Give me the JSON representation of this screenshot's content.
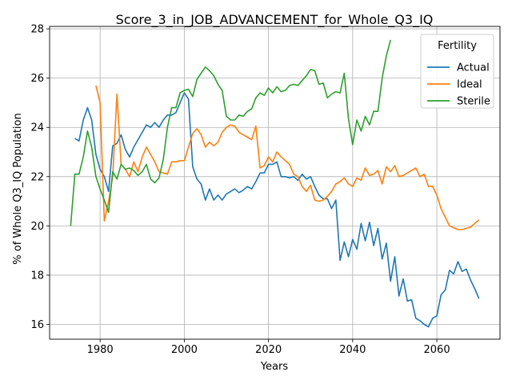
{
  "chart_data": {
    "type": "line",
    "title": "Score_3_in_JOB_ADVANCEMENT_for_Whole_Q3_IQ",
    "xlabel": "Years",
    "ylabel": "% of Whole Q3_IQ Population",
    "xlim": [
      1968,
      2075
    ],
    "ylim": [
      15.4,
      28.1
    ],
    "xticks": [
      1980,
      2000,
      2020,
      2040,
      2060
    ],
    "yticks": [
      16,
      18,
      20,
      22,
      24,
      26,
      28
    ],
    "grid": true,
    "legend": {
      "title": "Fertility",
      "position": "upper right"
    },
    "series": [
      {
        "name": "Actual",
        "color": "#1f77b4",
        "points": [
          [
            1974,
            23.55
          ],
          [
            1975,
            23.45
          ],
          [
            1976,
            24.3
          ],
          [
            1977,
            24.8
          ],
          [
            1978,
            24.3
          ],
          [
            1979,
            22.9
          ],
          [
            1980,
            22.3
          ],
          [
            1981,
            22.0
          ],
          [
            1982,
            21.4
          ],
          [
            1983,
            23.25
          ],
          [
            1984,
            23.35
          ],
          [
            1985,
            23.7
          ],
          [
            1986,
            23.1
          ],
          [
            1987,
            22.8
          ],
          [
            1988,
            23.2
          ],
          [
            1989,
            23.5
          ],
          [
            1990,
            23.8
          ],
          [
            1991,
            24.1
          ],
          [
            1992,
            24.0
          ],
          [
            1993,
            24.2
          ],
          [
            1994,
            24.0
          ],
          [
            1995,
            24.3
          ],
          [
            1996,
            24.5
          ],
          [
            1997,
            24.5
          ],
          [
            1998,
            24.6
          ],
          [
            1999,
            25.0
          ],
          [
            2000,
            25.4
          ],
          [
            2001,
            25.15
          ],
          [
            2002,
            22.4
          ],
          [
            2003,
            21.9
          ],
          [
            2004,
            21.7
          ],
          [
            2005,
            21.05
          ],
          [
            2006,
            21.5
          ],
          [
            2007,
            21.05
          ],
          [
            2008,
            21.25
          ],
          [
            2009,
            21.05
          ],
          [
            2010,
            21.3
          ],
          [
            2011,
            21.4
          ],
          [
            2012,
            21.5
          ],
          [
            2013,
            21.35
          ],
          [
            2014,
            21.45
          ],
          [
            2015,
            21.6
          ],
          [
            2016,
            21.5
          ],
          [
            2017,
            21.8
          ],
          [
            2018,
            22.15
          ],
          [
            2019,
            22.15
          ],
          [
            2020,
            22.5
          ],
          [
            2021,
            22.5
          ],
          [
            2022,
            22.6
          ],
          [
            2023,
            22.0
          ],
          [
            2024,
            22.0
          ],
          [
            2025,
            21.95
          ],
          [
            2026,
            22.0
          ],
          [
            2027,
            21.85
          ],
          [
            2028,
            22.1
          ],
          [
            2029,
            21.9
          ],
          [
            2030,
            22.0
          ],
          [
            2031,
            21.6
          ],
          [
            2032,
            21.25
          ],
          [
            2033,
            21.1
          ],
          [
            2034,
            21.1
          ],
          [
            2035,
            20.7
          ],
          [
            2036,
            21.05
          ],
          [
            2037,
            18.6
          ],
          [
            2038,
            19.35
          ],
          [
            2039,
            18.75
          ],
          [
            2040,
            19.45
          ],
          [
            2041,
            19.05
          ],
          [
            2042,
            20.1
          ],
          [
            2043,
            19.4
          ],
          [
            2044,
            20.15
          ],
          [
            2045,
            19.2
          ],
          [
            2046,
            19.9
          ],
          [
            2047,
            18.65
          ],
          [
            2048,
            19.3
          ],
          [
            2049,
            17.75
          ],
          [
            2050,
            18.75
          ],
          [
            2051,
            17.15
          ],
          [
            2052,
            17.85
          ],
          [
            2053,
            16.95
          ],
          [
            2054,
            17.0
          ],
          [
            2055,
            16.25
          ],
          [
            2056,
            16.15
          ],
          [
            2057,
            16.0
          ],
          [
            2058,
            15.9
          ],
          [
            2059,
            16.25
          ],
          [
            2060,
            16.35
          ],
          [
            2061,
            17.2
          ],
          [
            2062,
            17.4
          ],
          [
            2063,
            18.2
          ],
          [
            2064,
            18.05
          ],
          [
            2065,
            18.55
          ],
          [
            2066,
            18.15
          ],
          [
            2067,
            18.25
          ],
          [
            2068,
            17.8
          ],
          [
            2069,
            17.45
          ],
          [
            2070,
            17.05
          ]
        ]
      },
      {
        "name": "Ideal",
        "color": "#ff7f0e",
        "points": [
          [
            1979,
            25.7
          ],
          [
            1980,
            25.0
          ],
          [
            1981,
            20.2
          ],
          [
            1982,
            21.0
          ],
          [
            1983,
            22.0
          ],
          [
            1984,
            25.35
          ],
          [
            1985,
            22.5
          ],
          [
            1986,
            22.3
          ],
          [
            1987,
            22.0
          ],
          [
            1988,
            22.6
          ],
          [
            1989,
            22.2
          ],
          [
            1990,
            22.8
          ],
          [
            1991,
            23.2
          ],
          [
            1992,
            22.9
          ],
          [
            1993,
            22.6
          ],
          [
            1994,
            22.2
          ],
          [
            1995,
            22.15
          ],
          [
            1996,
            22.1
          ],
          [
            1997,
            22.6
          ],
          [
            1998,
            22.6
          ],
          [
            1999,
            22.65
          ],
          [
            2000,
            22.65
          ],
          [
            2001,
            23.2
          ],
          [
            2002,
            23.75
          ],
          [
            2003,
            23.95
          ],
          [
            2004,
            23.7
          ],
          [
            2005,
            23.2
          ],
          [
            2006,
            23.4
          ],
          [
            2007,
            23.25
          ],
          [
            2008,
            23.4
          ],
          [
            2009,
            23.8
          ],
          [
            2010,
            24.0
          ],
          [
            2011,
            24.1
          ],
          [
            2012,
            24.05
          ],
          [
            2013,
            23.8
          ],
          [
            2014,
            23.7
          ],
          [
            2015,
            23.6
          ],
          [
            2016,
            23.5
          ],
          [
            2017,
            24.05
          ],
          [
            2018,
            22.35
          ],
          [
            2019,
            22.45
          ],
          [
            2020,
            22.8
          ],
          [
            2021,
            22.6
          ],
          [
            2022,
            23.0
          ],
          [
            2023,
            22.8
          ],
          [
            2024,
            22.65
          ],
          [
            2025,
            22.5
          ],
          [
            2026,
            22.1
          ],
          [
            2027,
            22.0
          ],
          [
            2028,
            21.6
          ],
          [
            2029,
            21.4
          ],
          [
            2030,
            21.65
          ],
          [
            2031,
            21.05
          ],
          [
            2032,
            21.0
          ],
          [
            2033,
            21.05
          ],
          [
            2034,
            21.2
          ],
          [
            2035,
            21.4
          ],
          [
            2036,
            21.7
          ],
          [
            2037,
            21.8
          ],
          [
            2038,
            21.95
          ],
          [
            2039,
            21.7
          ],
          [
            2040,
            21.6
          ],
          [
            2041,
            21.95
          ],
          [
            2042,
            21.85
          ],
          [
            2043,
            22.35
          ],
          [
            2044,
            22.05
          ],
          [
            2045,
            22.1
          ],
          [
            2046,
            22.25
          ],
          [
            2047,
            21.7
          ],
          [
            2048,
            22.4
          ],
          [
            2049,
            22.2
          ],
          [
            2050,
            22.45
          ],
          [
            2051,
            22.0
          ],
          [
            2052,
            22.05
          ],
          [
            2053,
            22.15
          ],
          [
            2054,
            22.25
          ],
          [
            2055,
            22.35
          ],
          [
            2056,
            22.0
          ],
          [
            2057,
            22.1
          ],
          [
            2058,
            21.6
          ],
          [
            2059,
            21.6
          ],
          [
            2060,
            21.25
          ],
          [
            2061,
            20.7
          ],
          [
            2062,
            20.35
          ],
          [
            2063,
            20.0
          ],
          [
            2065,
            19.85
          ],
          [
            2066,
            19.85
          ],
          [
            2068,
            19.95
          ],
          [
            2070,
            20.25
          ]
        ]
      },
      {
        "name": "Sterile",
        "color": "#2ca02c",
        "points": [
          [
            1973,
            20.0
          ],
          [
            1974,
            22.1
          ],
          [
            1975,
            22.1
          ],
          [
            1976,
            22.8
          ],
          [
            1977,
            23.85
          ],
          [
            1978,
            23.2
          ],
          [
            1979,
            22.0
          ],
          [
            1980,
            21.5
          ],
          [
            1981,
            21.05
          ],
          [
            1982,
            20.55
          ],
          [
            1983,
            22.2
          ],
          [
            1984,
            21.9
          ],
          [
            1985,
            22.5
          ],
          [
            1986,
            22.3
          ],
          [
            1987,
            22.35
          ],
          [
            1988,
            22.25
          ],
          [
            1989,
            22.05
          ],
          [
            1990,
            22.2
          ],
          [
            1991,
            22.5
          ],
          [
            1992,
            21.9
          ],
          [
            1993,
            21.75
          ],
          [
            1994,
            21.95
          ],
          [
            1995,
            22.7
          ],
          [
            1996,
            24.0
          ],
          [
            1997,
            24.8
          ],
          [
            1998,
            24.8
          ],
          [
            1999,
            25.4
          ],
          [
            2000,
            25.5
          ],
          [
            2001,
            25.55
          ],
          [
            2002,
            25.25
          ],
          [
            2003,
            25.95
          ],
          [
            2004,
            26.2
          ],
          [
            2005,
            26.45
          ],
          [
            2006,
            26.3
          ],
          [
            2007,
            26.1
          ],
          [
            2008,
            25.75
          ],
          [
            2009,
            25.5
          ],
          [
            2010,
            24.45
          ],
          [
            2011,
            24.3
          ],
          [
            2012,
            24.3
          ],
          [
            2013,
            24.5
          ],
          [
            2014,
            24.45
          ],
          [
            2015,
            24.65
          ],
          [
            2016,
            24.75
          ],
          [
            2017,
            25.2
          ],
          [
            2018,
            25.4
          ],
          [
            2019,
            25.3
          ],
          [
            2020,
            25.6
          ],
          [
            2021,
            25.4
          ],
          [
            2022,
            25.65
          ],
          [
            2023,
            25.45
          ],
          [
            2024,
            25.5
          ],
          [
            2025,
            25.7
          ],
          [
            2026,
            25.75
          ],
          [
            2027,
            25.7
          ],
          [
            2028,
            25.9
          ],
          [
            2029,
            26.1
          ],
          [
            2030,
            26.35
          ],
          [
            2031,
            26.3
          ],
          [
            2032,
            25.75
          ],
          [
            2033,
            25.8
          ],
          [
            2034,
            25.2
          ],
          [
            2035,
            25.35
          ],
          [
            2036,
            25.45
          ],
          [
            2037,
            25.4
          ],
          [
            2038,
            26.2
          ],
          [
            2039,
            24.35
          ],
          [
            2040,
            23.3
          ],
          [
            2041,
            24.3
          ],
          [
            2042,
            23.85
          ],
          [
            2043,
            24.45
          ],
          [
            2044,
            24.1
          ],
          [
            2045,
            24.65
          ],
          [
            2046,
            24.65
          ],
          [
            2047,
            26.0
          ],
          [
            2048,
            26.9
          ],
          [
            2049,
            27.55
          ]
        ]
      }
    ]
  }
}
